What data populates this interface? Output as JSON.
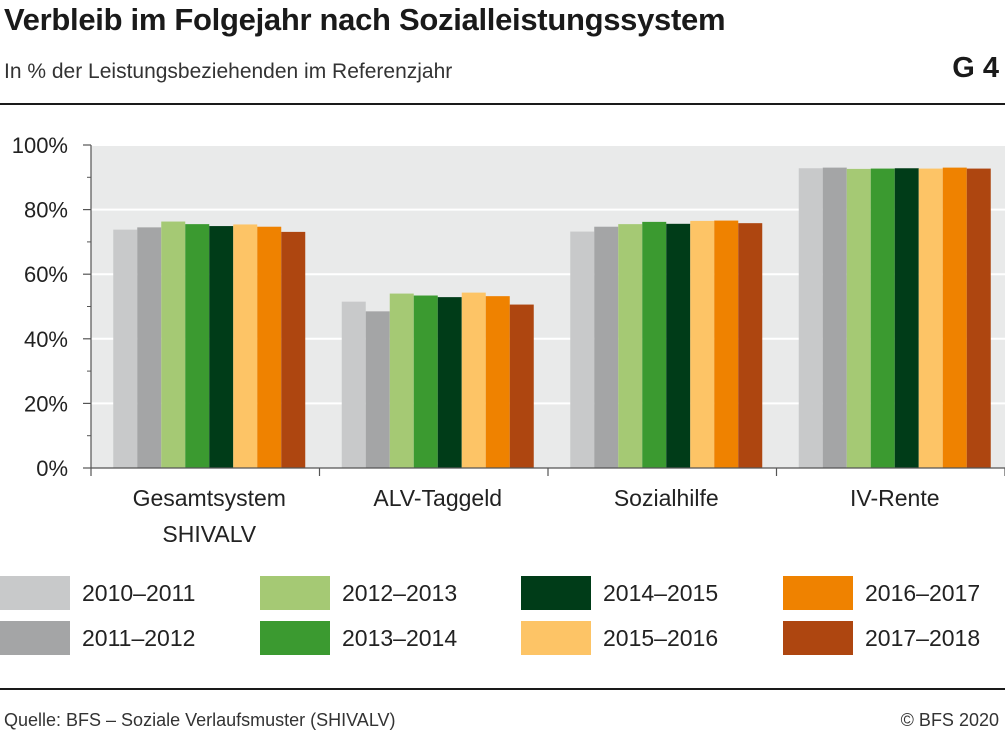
{
  "header": {
    "title": "Verbleib im Folgejahr nach Sozialleistungssystem",
    "subtitle": "In % der Leistungsbeziehenden im Referenzjahr",
    "graphic_code": "G 4"
  },
  "footer": {
    "source": "Quelle: BFS – Soziale Verlaufsmuster (SHIVALV)",
    "copyright": "© BFS 2020"
  },
  "chart_data": {
    "type": "bar",
    "title": "Verbleib im Folgejahr nach Sozialleistungssystem",
    "subtitle": "In % der Leistungsbeziehenden im Referenzjahr",
    "xlabel": "",
    "ylabel": "",
    "ylim": [
      0,
      100
    ],
    "y_ticks": [
      0,
      20,
      40,
      60,
      80,
      100
    ],
    "y_tick_labels": [
      "0%",
      "20%",
      "40%",
      "60%",
      "80%",
      "100%"
    ],
    "grid": true,
    "legend_position": "bottom",
    "categories": [
      [
        "Gesamtsystem",
        "SHIVALV"
      ],
      [
        "ALV-Taggeld"
      ],
      [
        "Sozialhilfe"
      ],
      [
        "IV-Rente"
      ]
    ],
    "series": [
      {
        "name": "2010–2011",
        "color": "#c8c9ca",
        "values": [
          73.8,
          51.5,
          73.2,
          92.8
        ]
      },
      {
        "name": "2011–2012",
        "color": "#a4a5a6",
        "values": [
          74.5,
          48.5,
          74.7,
          93.0
        ]
      },
      {
        "name": "2012–2013",
        "color": "#a5c974",
        "values": [
          76.3,
          54.0,
          75.5,
          92.6
        ]
      },
      {
        "name": "2013–2014",
        "color": "#3b9a30",
        "values": [
          75.5,
          53.4,
          76.2,
          92.7
        ]
      },
      {
        "name": "2014–2015",
        "color": "#003c18",
        "values": [
          74.9,
          52.9,
          75.6,
          92.8
        ]
      },
      {
        "name": "2015–2016",
        "color": "#fdc466",
        "values": [
          75.4,
          54.3,
          76.5,
          92.7
        ]
      },
      {
        "name": "2016–2017",
        "color": "#ef8200",
        "values": [
          74.7,
          53.2,
          76.6,
          93.0
        ]
      },
      {
        "name": "2017–2018",
        "color": "#ae4610",
        "values": [
          73.1,
          50.6,
          75.8,
          92.7
        ]
      }
    ]
  }
}
